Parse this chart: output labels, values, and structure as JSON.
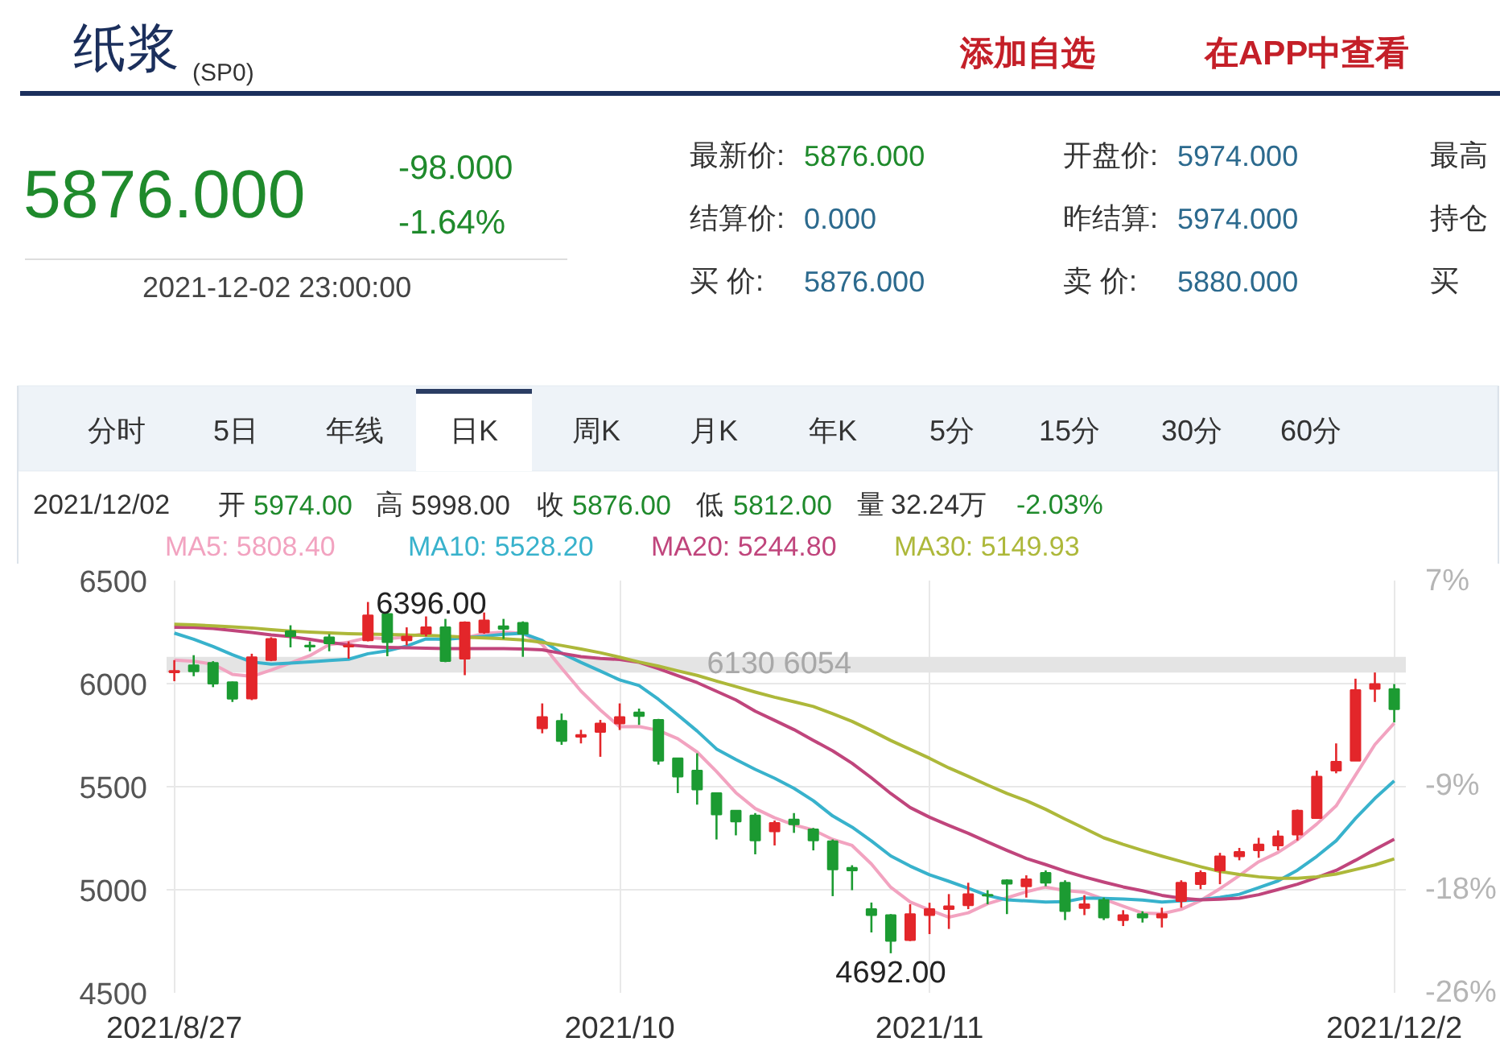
{
  "chart_data": {
    "type": "candlestick",
    "title": "纸浆",
    "subtitle": "(SP0)",
    "categories": [
      "2021/8/27",
      null,
      null,
      null,
      null,
      null,
      null,
      null,
      null,
      null,
      null,
      null,
      null,
      null,
      null,
      null,
      null,
      null,
      null,
      null,
      null,
      null,
      null,
      "2021/10",
      null,
      null,
      null,
      null,
      null,
      null,
      null,
      null,
      null,
      null,
      null,
      null,
      null,
      null,
      null,
      "2021/11",
      null,
      null,
      null,
      null,
      null,
      null,
      null,
      null,
      null,
      null,
      null,
      null,
      null,
      null,
      null,
      null,
      null,
      null,
      null,
      null,
      null,
      null,
      null,
      "2021/12/2"
    ],
    "ohlc": [
      [
        6055,
        6114,
        6012,
        6062
      ],
      [
        6089,
        6138,
        6036,
        6060
      ],
      [
        6101,
        6109,
        5983,
        6000
      ],
      [
        6007,
        6010,
        5911,
        5927
      ],
      [
        5928,
        6145,
        5920,
        6128
      ],
      [
        6114,
        6225,
        6109,
        6217
      ],
      [
        6254,
        6283,
        6176,
        6230
      ],
      [
        6185,
        6205,
        6157,
        6180
      ],
      [
        6225,
        6240,
        6157,
        6195
      ],
      [
        6180,
        6205,
        6121,
        6186
      ],
      [
        6210,
        6396,
        6205,
        6331
      ],
      [
        6338,
        6345,
        6133,
        6201
      ],
      [
        6210,
        6273,
        6186,
        6229
      ],
      [
        6242,
        6326,
        6229,
        6273
      ],
      [
        6273,
        6314,
        6104,
        6109
      ],
      [
        6121,
        6302,
        6041,
        6297
      ],
      [
        6249,
        6345,
        6242,
        6307
      ],
      [
        6278,
        6314,
        6217,
        6266
      ],
      [
        6295,
        6302,
        6130,
        6242
      ],
      [
        5783,
        5904,
        5759,
        5838
      ],
      [
        5819,
        5855,
        5703,
        5722
      ],
      [
        5742,
        5776,
        5710,
        5751
      ],
      [
        5766,
        5824,
        5645,
        5807
      ],
      [
        5807,
        5904,
        5775,
        5838
      ],
      [
        5860,
        5879,
        5800,
        5843
      ],
      [
        5824,
        5829,
        5607,
        5626
      ],
      [
        5638,
        5640,
        5469,
        5549
      ],
      [
        5578,
        5662,
        5413,
        5486
      ],
      [
        5469,
        5472,
        5244,
        5365
      ],
      [
        5384,
        5386,
        5264,
        5331
      ],
      [
        5360,
        5372,
        5172,
        5239
      ],
      [
        5283,
        5336,
        5215,
        5324
      ],
      [
        5341,
        5372,
        5276,
        5317
      ],
      [
        5293,
        5300,
        5191,
        5239
      ],
      [
        5235,
        5244,
        4969,
        5099
      ],
      [
        5106,
        5119,
        4998,
        5094
      ],
      [
        4906,
        4938,
        4793,
        4877
      ],
      [
        4877,
        4882,
        4692,
        4752
      ],
      [
        4756,
        4930,
        4751,
        4882
      ],
      [
        4877,
        4937,
        4785,
        4906
      ],
      [
        4906,
        4979,
        4810,
        4920
      ],
      [
        4925,
        5034,
        4906,
        4979
      ],
      [
        4976,
        4998,
        4930,
        4972
      ],
      [
        5046,
        5051,
        4882,
        5029
      ],
      [
        5017,
        5070,
        4962,
        5051
      ],
      [
        5082,
        5094,
        5017,
        5034
      ],
      [
        5034,
        5046,
        4853,
        4896
      ],
      [
        4911,
        4974,
        4877,
        4930
      ],
      [
        4950,
        4962,
        4853,
        4865
      ],
      [
        4853,
        4901,
        4824,
        4877
      ],
      [
        4882,
        4896,
        4841,
        4865
      ],
      [
        4865,
        4913,
        4817,
        4882
      ],
      [
        4945,
        5046,
        4913,
        5034
      ],
      [
        5027,
        5094,
        5003,
        5082
      ],
      [
        5094,
        5179,
        5027,
        5162
      ],
      [
        5162,
        5203,
        5143,
        5184
      ],
      [
        5191,
        5252,
        5155,
        5220
      ],
      [
        5215,
        5288,
        5191,
        5259
      ],
      [
        5268,
        5389,
        5239,
        5384
      ],
      [
        5348,
        5578,
        5348,
        5549
      ],
      [
        5578,
        5710,
        5565,
        5621
      ],
      [
        5626,
        6024,
        5626,
        5969
      ],
      [
        5975,
        6054,
        5911,
        5998
      ],
      [
        5974,
        5998,
        5812,
        5876
      ]
    ],
    "colors": [
      "#e3262a",
      "#1c9b32",
      "#1c9b32",
      "#1c9b32",
      "#e3262a",
      "#e3262a",
      "#1c9b32",
      "#1c9b32",
      "#1c9b32",
      "#e3262a",
      "#e3262a",
      "#1c9b32",
      "#e3262a",
      "#e3262a",
      "#1c9b32",
      "#e3262a",
      "#e3262a",
      "#1c9b32",
      "#1c9b32",
      "#e3262a",
      "#1c9b32",
      "#e3262a",
      "#e3262a",
      "#e3262a",
      "#1c9b32",
      "#1c9b32",
      "#1c9b32",
      "#1c9b32",
      "#1c9b32",
      "#1c9b32",
      "#1c9b32",
      "#e3262a",
      "#1c9b32",
      "#1c9b32",
      "#1c9b32",
      "#1c9b32",
      "#1c9b32",
      "#1c9b32",
      "#e3262a",
      "#e3262a",
      "#e3262a",
      "#e3262a",
      "#1c9b32",
      "#1c9b32",
      "#e3262a",
      "#1c9b32",
      "#1c9b32",
      "#e3262a",
      "#1c9b32",
      "#e3262a",
      "#1c9b32",
      "#e3262a",
      "#e3262a",
      "#e3262a",
      "#e3262a",
      "#e3262a",
      "#e3262a",
      "#e3262a",
      "#e3262a",
      "#e3262a",
      "#e3262a",
      "#e3262a",
      "#e3262a",
      "#1c9b32"
    ],
    "series": [
      {
        "name": "MA5: 5808.40",
        "type": "line",
        "color": "#f2a3c0",
        "values": [
          6114,
          6108,
          6095,
          6045,
          6035,
          6066,
          6100,
          6136,
          6189,
          6201,
          6223,
          6218,
          6227,
          6244,
          null,
          6222,
          6243,
          6250,
          6244,
          6190,
          6075,
          5964,
          5872,
          5791,
          5792,
          5773,
          5733,
          5668,
          5574,
          5471,
          5394,
          5349,
          5315,
          5290,
          5244,
          5215,
          5125,
          5012,
          4941,
          4902,
          4867,
          4888,
          4932,
          4961,
          4990,
          5013,
          4996,
          4988,
          4955,
          4920,
          4887,
          4884,
          4905,
          4948,
          5005,
          5069,
          5136,
          5181,
          5242,
          5319,
          5407,
          5556,
          5704,
          5808.4
        ]
      },
      {
        "name": "MA10: 5528.20",
        "type": "line",
        "color": "#38b2cc",
        "values": [
          6245,
          6215,
          6180,
          6140,
          6105,
          6095,
          6100,
          6105,
          6112,
          6118,
          6145,
          6159,
          6182,
          6217,
          6215,
          6223,
          6230,
          6239,
          6244,
          6209,
          6148,
          6103,
          6061,
          6018,
          5991,
          5924,
          5848,
          5770,
          5683,
          5632,
          5584,
          5541,
          5492,
          5432,
          5358,
          5304,
          5237,
          5164,
          5115,
          5073,
          5041,
          5007,
          4972,
          4951,
          4946,
          4940,
          4942,
          4960,
          4958,
          4955,
          4950,
          4940,
          4946,
          4952,
          4963,
          4978,
          5010,
          5043,
          5095,
          5162,
          5238,
          5346,
          5443,
          5528.2
        ]
      },
      {
        "name": "MA20: 5244.80",
        "type": "line",
        "color": "#c0457c",
        "values": [
          6273,
          6272,
          6268,
          6258,
          6248,
          6236,
          6228,
          6215,
          6200,
          6188,
          6180,
          6176,
          6174,
          6172,
          6170,
          6170,
          6170,
          6170,
          6168,
          6164,
          6147,
          6131,
          6122,
          6117,
          6103,
          6073,
          6039,
          6005,
          5963,
          5921,
          5866,
          5822,
          5777,
          5725,
          5674,
          5614,
          5543,
          5467,
          5399,
          5352,
          5312,
          5274,
          5232,
          5191,
          5152,
          5122,
          5090,
          5062,
          5037,
          5014,
          4995,
          4973,
          4959,
          4951,
          4954,
          4959,
          4976,
          5001,
          5027,
          5059,
          5094,
          5143,
          5195,
          5244.8
        ]
      },
      {
        "name": "MA30: 5149.93",
        "type": "line",
        "color": "#adb83a",
        "values": [
          6288,
          6285,
          6280,
          6275,
          6270,
          6262,
          6255,
          6250,
          6246,
          6242,
          6240,
          6238,
          6236,
          6234,
          6230,
          6226,
          6222,
          6218,
          6212,
          6200,
          6185,
          6168,
          6150,
          6128,
          6105,
          6085,
          6062,
          6040,
          6012,
          5986,
          5959,
          5934,
          5912,
          5889,
          5854,
          5817,
          5772,
          5724,
          5681,
          5638,
          5591,
          5550,
          5508,
          5467,
          5432,
          5390,
          5343,
          5298,
          5252,
          5220,
          5191,
          5163,
          5137,
          5112,
          5089,
          5074,
          5063,
          5056,
          5056,
          5063,
          5076,
          5098,
          5120,
          5149.93
        ]
      }
    ],
    "ylim": [
      4500,
      6500
    ],
    "yticks": [
      4500,
      5000,
      5500,
      6000,
      6500
    ],
    "y2lim": [
      -25.9,
      7.0
    ],
    "y2ticks": [
      {
        "value": 7.0,
        "label": "7%"
      },
      {
        "value": -9.4,
        "label": "-9%"
      },
      {
        "value": -17.7,
        "label": "-18%"
      },
      {
        "value": -25.9,
        "label": "-26%"
      }
    ],
    "grid": true,
    "legend": "top left",
    "bands": [
      {
        "axis": "y",
        "from": 6054,
        "to": 6130,
        "label": "6130 6054",
        "color": "#e4e4e4"
      }
    ],
    "annotations": [
      "添加自选",
      "在APP中查看",
      "5876.000",
      "-98.000",
      "-1.64%",
      "2021-12-02 23:00:00",
      "最新价:",
      "5876.000",
      "开盘价:",
      "5974.000",
      "最高",
      "结算价:",
      "0.000",
      "昨结算:",
      "5974.000",
      "持仓",
      "买 价:",
      "5876.000",
      "卖 价:",
      "5880.000",
      "买",
      "分时",
      "5日",
      "年线",
      "日K",
      "周K",
      "月K",
      "年K",
      "5分",
      "15分",
      "30分",
      "60分",
      "2021/12/02",
      "开",
      "5974.00",
      "高",
      "5998.00",
      "收",
      "5876.00",
      "低",
      "5812.00",
      "量",
      "32.24万",
      "-2.03%",
      "6396.00",
      "4692.00"
    ]
  }
}
